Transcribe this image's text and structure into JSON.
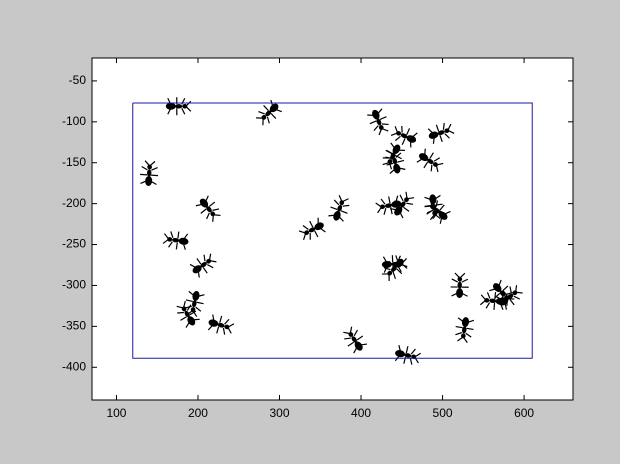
{
  "chart_data": {
    "type": "scatter",
    "xlim": [
      70,
      660
    ],
    "ylim": [
      -440,
      -22
    ],
    "xticks": [
      100,
      200,
      300,
      400,
      500,
      600
    ],
    "yticks": [
      -50,
      -100,
      -150,
      -200,
      -250,
      -300,
      -350,
      -400
    ],
    "grid": false,
    "series": [
      {
        "marker": "ant",
        "color": "#000000",
        "x": [
          174,
          288,
          140,
          212,
          175,
          205,
          196,
          188,
          226,
          342,
          373,
          421,
          455,
          496,
          440,
          442,
          483,
          436,
          450,
          489,
          495,
          439,
          442,
          521,
          572,
          564,
          581,
          527,
          393,
          455
        ],
        "values": [
          -81,
          -88,
          -165,
          -205,
          -245,
          -276,
          -320,
          -337,
          -348,
          -231,
          -208,
          -98,
          -118,
          -114,
          -140,
          -150,
          -147,
          -202,
          -203,
          -202,
          -210,
          -274,
          -278,
          -302,
          -308,
          -319,
          -315,
          -352,
          -368,
          -385
        ]
      },
      {
        "marker": "none",
        "color": "#1a1aa6",
        "x": [
          120,
          610,
          610,
          120,
          120
        ],
        "values": [
          -77,
          -77,
          -389,
          -389,
          -77
        ]
      }
    ]
  }
}
